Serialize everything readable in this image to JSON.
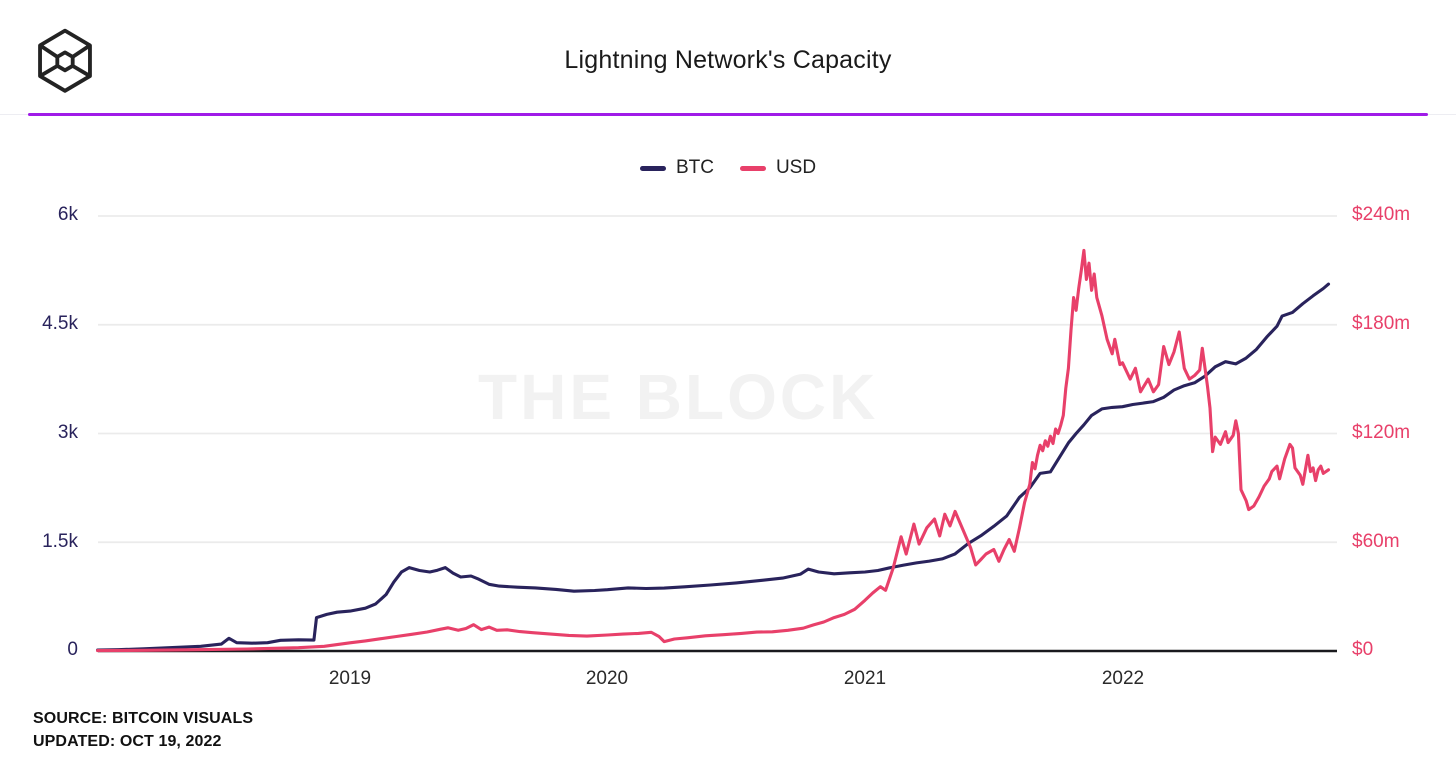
{
  "header": {
    "title": "Lightning Network's Capacity"
  },
  "legend": {
    "items": [
      {
        "label": "BTC",
        "color": "#29235C"
      },
      {
        "label": "USD",
        "color": "#E8406A"
      }
    ]
  },
  "watermark": {
    "text": "THE BLOCK"
  },
  "footer": {
    "source": "SOURCE: BITCOIN VISUALS",
    "updated": "UPDATED: OCT 19, 2022"
  },
  "chart_data": {
    "type": "line",
    "title": "Lightning Network's Capacity",
    "grid": true,
    "legend_position": "top-center",
    "x_ticks": [
      "2019",
      "2020",
      "2021",
      "2022"
    ],
    "x_range": [
      2018.0,
      2022.82
    ],
    "left_axis": {
      "series": "BTC",
      "color": "#29235C",
      "ticks": [
        "6k",
        "4.5k",
        "3k",
        "1.5k",
        "0"
      ],
      "tick_values": [
        6000,
        4500,
        3000,
        1500,
        0
      ],
      "range": [
        0,
        6000
      ]
    },
    "right_axis": {
      "series": "USD",
      "color": "#E8406A",
      "ticks": [
        "$240m",
        "$180m",
        "$120m",
        "$60m",
        "$0"
      ],
      "tick_values": [
        240,
        180,
        120,
        60,
        0
      ],
      "range": [
        0,
        240
      ]
    },
    "series": [
      {
        "name": "BTC",
        "axis": "left",
        "color": "#29235C",
        "unit": "BTC",
        "points": [
          [
            2018.02,
            12
          ],
          [
            2018.1,
            18
          ],
          [
            2018.2,
            30
          ],
          [
            2018.3,
            45
          ],
          [
            2018.42,
            65
          ],
          [
            2018.5,
            95
          ],
          [
            2018.53,
            175
          ],
          [
            2018.56,
            115
          ],
          [
            2018.62,
            108
          ],
          [
            2018.68,
            115
          ],
          [
            2018.73,
            148
          ],
          [
            2018.8,
            155
          ],
          [
            2018.86,
            150
          ],
          [
            2018.87,
            460
          ],
          [
            2018.91,
            505
          ],
          [
            2018.95,
            535
          ],
          [
            2019.0,
            550
          ],
          [
            2019.06,
            590
          ],
          [
            2019.1,
            650
          ],
          [
            2019.14,
            780
          ],
          [
            2019.17,
            950
          ],
          [
            2019.2,
            1090
          ],
          [
            2019.23,
            1150
          ],
          [
            2019.27,
            1110
          ],
          [
            2019.31,
            1090
          ],
          [
            2019.34,
            1115
          ],
          [
            2019.37,
            1150
          ],
          [
            2019.4,
            1075
          ],
          [
            2019.43,
            1020
          ],
          [
            2019.47,
            1035
          ],
          [
            2019.5,
            990
          ],
          [
            2019.54,
            920
          ],
          [
            2019.58,
            895
          ],
          [
            2019.65,
            880
          ],
          [
            2019.72,
            870
          ],
          [
            2019.8,
            850
          ],
          [
            2019.87,
            825
          ],
          [
            2019.95,
            835
          ],
          [
            2020.0,
            845
          ],
          [
            2020.08,
            870
          ],
          [
            2020.15,
            862
          ],
          [
            2020.22,
            868
          ],
          [
            2020.3,
            885
          ],
          [
            2020.4,
            910
          ],
          [
            2020.5,
            940
          ],
          [
            2020.6,
            975
          ],
          [
            2020.68,
            1005
          ],
          [
            2020.75,
            1060
          ],
          [
            2020.78,
            1130
          ],
          [
            2020.82,
            1090
          ],
          [
            2020.88,
            1065
          ],
          [
            2020.94,
            1078
          ],
          [
            2021.0,
            1090
          ],
          [
            2021.05,
            1110
          ],
          [
            2021.1,
            1150
          ],
          [
            2021.15,
            1185
          ],
          [
            2021.2,
            1215
          ],
          [
            2021.25,
            1240
          ],
          [
            2021.3,
            1270
          ],
          [
            2021.35,
            1340
          ],
          [
            2021.4,
            1480
          ],
          [
            2021.45,
            1590
          ],
          [
            2021.5,
            1720
          ],
          [
            2021.55,
            1860
          ],
          [
            2021.6,
            2120
          ],
          [
            2021.64,
            2250
          ],
          [
            2021.68,
            2450
          ],
          [
            2021.72,
            2470
          ],
          [
            2021.76,
            2700
          ],
          [
            2021.79,
            2870
          ],
          [
            2021.82,
            3000
          ],
          [
            2021.85,
            3120
          ],
          [
            2021.88,
            3250
          ],
          [
            2021.92,
            3340
          ],
          [
            2021.96,
            3360
          ],
          [
            2022.0,
            3370
          ],
          [
            2022.04,
            3400
          ],
          [
            2022.08,
            3420
          ],
          [
            2022.12,
            3440
          ],
          [
            2022.16,
            3500
          ],
          [
            2022.2,
            3600
          ],
          [
            2022.24,
            3660
          ],
          [
            2022.28,
            3700
          ],
          [
            2022.32,
            3790
          ],
          [
            2022.36,
            3920
          ],
          [
            2022.4,
            3990
          ],
          [
            2022.44,
            3960
          ],
          [
            2022.48,
            4040
          ],
          [
            2022.52,
            4160
          ],
          [
            2022.56,
            4330
          ],
          [
            2022.6,
            4480
          ],
          [
            2022.62,
            4620
          ],
          [
            2022.66,
            4670
          ],
          [
            2022.7,
            4790
          ],
          [
            2022.74,
            4900
          ],
          [
            2022.78,
            5000
          ],
          [
            2022.8,
            5060
          ]
        ]
      },
      {
        "name": "USD",
        "axis": "right",
        "color": "#E8406A",
        "unit": "$m",
        "points": [
          [
            2018.02,
            0.2
          ],
          [
            2018.2,
            0.4
          ],
          [
            2018.4,
            0.7
          ],
          [
            2018.6,
            1.1
          ],
          [
            2018.8,
            1.8
          ],
          [
            2018.9,
            2.6
          ],
          [
            2019.0,
            4.5
          ],
          [
            2019.06,
            5.6
          ],
          [
            2019.12,
            6.8
          ],
          [
            2019.18,
            8.0
          ],
          [
            2019.24,
            9.2
          ],
          [
            2019.3,
            10.5
          ],
          [
            2019.35,
            12.0
          ],
          [
            2019.38,
            12.8
          ],
          [
            2019.42,
            11.4
          ],
          [
            2019.45,
            12.4
          ],
          [
            2019.48,
            14.5
          ],
          [
            2019.51,
            11.8
          ],
          [
            2019.54,
            13.2
          ],
          [
            2019.57,
            11.4
          ],
          [
            2019.61,
            11.7
          ],
          [
            2019.66,
            10.7
          ],
          [
            2019.71,
            10.1
          ],
          [
            2019.78,
            9.3
          ],
          [
            2019.85,
            8.6
          ],
          [
            2019.92,
            8.2
          ],
          [
            2020.0,
            8.8
          ],
          [
            2020.06,
            9.3
          ],
          [
            2020.12,
            9.7
          ],
          [
            2020.17,
            10.3
          ],
          [
            2020.2,
            8.0
          ],
          [
            2020.22,
            5.2
          ],
          [
            2020.26,
            6.6
          ],
          [
            2020.31,
            7.3
          ],
          [
            2020.38,
            8.4
          ],
          [
            2020.45,
            9.0
          ],
          [
            2020.52,
            9.7
          ],
          [
            2020.58,
            10.4
          ],
          [
            2020.64,
            10.6
          ],
          [
            2020.7,
            11.4
          ],
          [
            2020.76,
            12.6
          ],
          [
            2020.8,
            14.4
          ],
          [
            2020.84,
            16.0
          ],
          [
            2020.88,
            18.4
          ],
          [
            2020.92,
            20.2
          ],
          [
            2020.96,
            23.0
          ],
          [
            2021.0,
            28.0
          ],
          [
            2021.03,
            32.0
          ],
          [
            2021.06,
            35.5
          ],
          [
            2021.08,
            33.5
          ],
          [
            2021.11,
            46.0
          ],
          [
            2021.14,
            63.0
          ],
          [
            2021.16,
            53.5
          ],
          [
            2021.19,
            70.0
          ],
          [
            2021.21,
            59.0
          ],
          [
            2021.24,
            68.0
          ],
          [
            2021.27,
            72.8
          ],
          [
            2021.29,
            63.5
          ],
          [
            2021.31,
            75.5
          ],
          [
            2021.33,
            69.0
          ],
          [
            2021.35,
            77.0
          ],
          [
            2021.38,
            67.0
          ],
          [
            2021.41,
            57.0
          ],
          [
            2021.43,
            47.5
          ],
          [
            2021.45,
            50.5
          ],
          [
            2021.47,
            53.5
          ],
          [
            2021.5,
            56.0
          ],
          [
            2021.52,
            49.5
          ],
          [
            2021.54,
            56.0
          ],
          [
            2021.56,
            61.5
          ],
          [
            2021.58,
            55.0
          ],
          [
            2021.6,
            68.0
          ],
          [
            2021.62,
            82.0
          ],
          [
            2021.64,
            92.0
          ],
          [
            2021.65,
            104.0
          ],
          [
            2021.66,
            100.5
          ],
          [
            2021.67,
            108.0
          ],
          [
            2021.68,
            113.5
          ],
          [
            2021.69,
            110.5
          ],
          [
            2021.7,
            116.0
          ],
          [
            2021.71,
            113.0
          ],
          [
            2021.72,
            118.5
          ],
          [
            2021.73,
            114.5
          ],
          [
            2021.74,
            122.5
          ],
          [
            2021.75,
            120.0
          ],
          [
            2021.76,
            124.5
          ],
          [
            2021.77,
            130.0
          ],
          [
            2021.78,
            145.0
          ],
          [
            2021.79,
            156.0
          ],
          [
            2021.8,
            177.0
          ],
          [
            2021.81,
            195.0
          ],
          [
            2021.82,
            188.0
          ],
          [
            2021.83,
            200.0
          ],
          [
            2021.84,
            210.0
          ],
          [
            2021.85,
            221.0
          ],
          [
            2021.86,
            205.0
          ],
          [
            2021.87,
            214.0
          ],
          [
            2021.88,
            199.0
          ],
          [
            2021.89,
            208.0
          ],
          [
            2021.9,
            195.0
          ],
          [
            2021.92,
            185.0
          ],
          [
            2021.94,
            172.0
          ],
          [
            2021.96,
            164.0
          ],
          [
            2021.97,
            172.0
          ],
          [
            2021.99,
            158.0
          ],
          [
            2022.0,
            159.0
          ],
          [
            2022.03,
            150.0
          ],
          [
            2022.05,
            156.0
          ],
          [
            2022.07,
            143.0
          ],
          [
            2022.1,
            150.0
          ],
          [
            2022.12,
            143.0
          ],
          [
            2022.14,
            147.0
          ],
          [
            2022.16,
            168.0
          ],
          [
            2022.18,
            158.0
          ],
          [
            2022.2,
            165.0
          ],
          [
            2022.22,
            176.0
          ],
          [
            2022.24,
            156.0
          ],
          [
            2022.26,
            150.0
          ],
          [
            2022.28,
            152.0
          ],
          [
            2022.3,
            155.0
          ],
          [
            2022.31,
            167.0
          ],
          [
            2022.33,
            146.0
          ],
          [
            2022.34,
            134.0
          ],
          [
            2022.35,
            110.0
          ],
          [
            2022.36,
            118.0
          ],
          [
            2022.38,
            114.0
          ],
          [
            2022.4,
            121.0
          ],
          [
            2022.41,
            115.0
          ],
          [
            2022.43,
            119.0
          ],
          [
            2022.44,
            127.0
          ],
          [
            2022.45,
            120.0
          ],
          [
            2022.46,
            89.0
          ],
          [
            2022.48,
            83.0
          ],
          [
            2022.49,
            78.0
          ],
          [
            2022.51,
            80.0
          ],
          [
            2022.53,
            85.0
          ],
          [
            2022.55,
            91.0
          ],
          [
            2022.57,
            95.0
          ],
          [
            2022.58,
            99.0
          ],
          [
            2022.6,
            102.0
          ],
          [
            2022.61,
            95.0
          ],
          [
            2022.63,
            106.0
          ],
          [
            2022.65,
            114.0
          ],
          [
            2022.66,
            112.0
          ],
          [
            2022.67,
            101.0
          ],
          [
            2022.69,
            97.0
          ],
          [
            2022.7,
            92.0
          ],
          [
            2022.72,
            108.0
          ],
          [
            2022.73,
            99.0
          ],
          [
            2022.74,
            101.0
          ],
          [
            2022.75,
            94.0
          ],
          [
            2022.76,
            100.0
          ],
          [
            2022.77,
            102.0
          ],
          [
            2022.78,
            98.0
          ],
          [
            2022.8,
            100.0
          ]
        ]
      }
    ]
  }
}
